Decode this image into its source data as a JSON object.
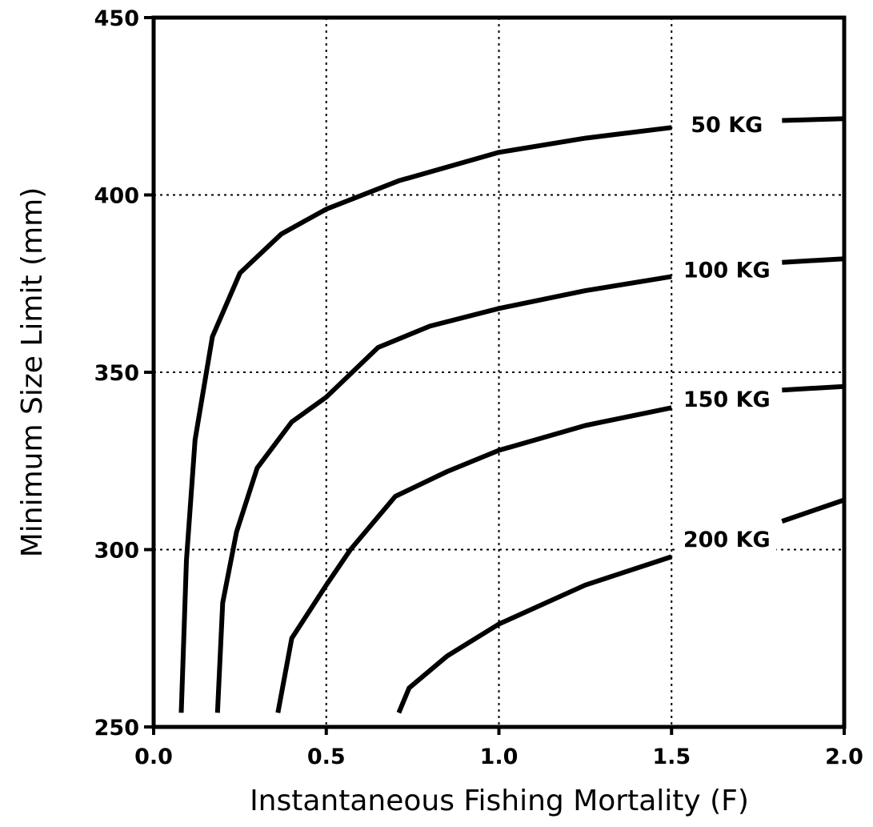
{
  "chart_data": {
    "type": "line",
    "x_label": "Instantaneous Fishing Mortality (F)",
    "y_label": "Minimum Size Limit (mm)",
    "xlim": [
      0,
      2
    ],
    "ylim": [
      250,
      450
    ],
    "xticks": [
      {
        "value": 0,
        "label": "0.0"
      },
      0.5,
      {
        "value": 1,
        "label": "1.0"
      },
      1.5,
      {
        "value": 2,
        "label": "2.0"
      }
    ],
    "yticks": [
      250,
      300,
      350,
      400,
      450
    ],
    "grid": true,
    "series": [
      {
        "name": "50 KG",
        "color": "#000000",
        "x": [
          0.08,
          0.095,
          0.12,
          0.17,
          0.25,
          0.37,
          0.5,
          0.71,
          1.0,
          1.25,
          1.5,
          null,
          1.82,
          2.0
        ],
        "values": [
          254,
          297,
          331,
          360,
          378,
          389,
          396,
          404,
          412,
          416,
          419,
          null,
          421,
          421.5
        ]
      },
      {
        "name": "100 KG",
        "color": "#000000",
        "x": [
          0.185,
          0.2,
          0.24,
          0.3,
          0.4,
          0.5,
          0.65,
          0.8,
          1.0,
          1.25,
          1.5,
          null,
          1.82,
          2.0
        ],
        "values": [
          254,
          285,
          305,
          323,
          336,
          343,
          357,
          363,
          368,
          373,
          377,
          null,
          381,
          382
        ]
      },
      {
        "name": "150 KG",
        "color": "#000000",
        "x": [
          0.36,
          0.4,
          0.5,
          0.57,
          0.7,
          0.85,
          1.0,
          1.25,
          1.5,
          null,
          1.82,
          2.0
        ],
        "values": [
          254,
          275,
          290,
          300,
          315,
          322,
          328,
          335,
          340,
          null,
          345,
          346
        ]
      },
      {
        "name": "200 KG",
        "color": "#000000",
        "x": [
          0.71,
          0.74,
          0.85,
          1.0,
          1.25,
          1.5,
          null,
          1.82,
          2.0
        ],
        "values": [
          254,
          261,
          270,
          279,
          290,
          298,
          null,
          308,
          314
        ]
      }
    ]
  }
}
